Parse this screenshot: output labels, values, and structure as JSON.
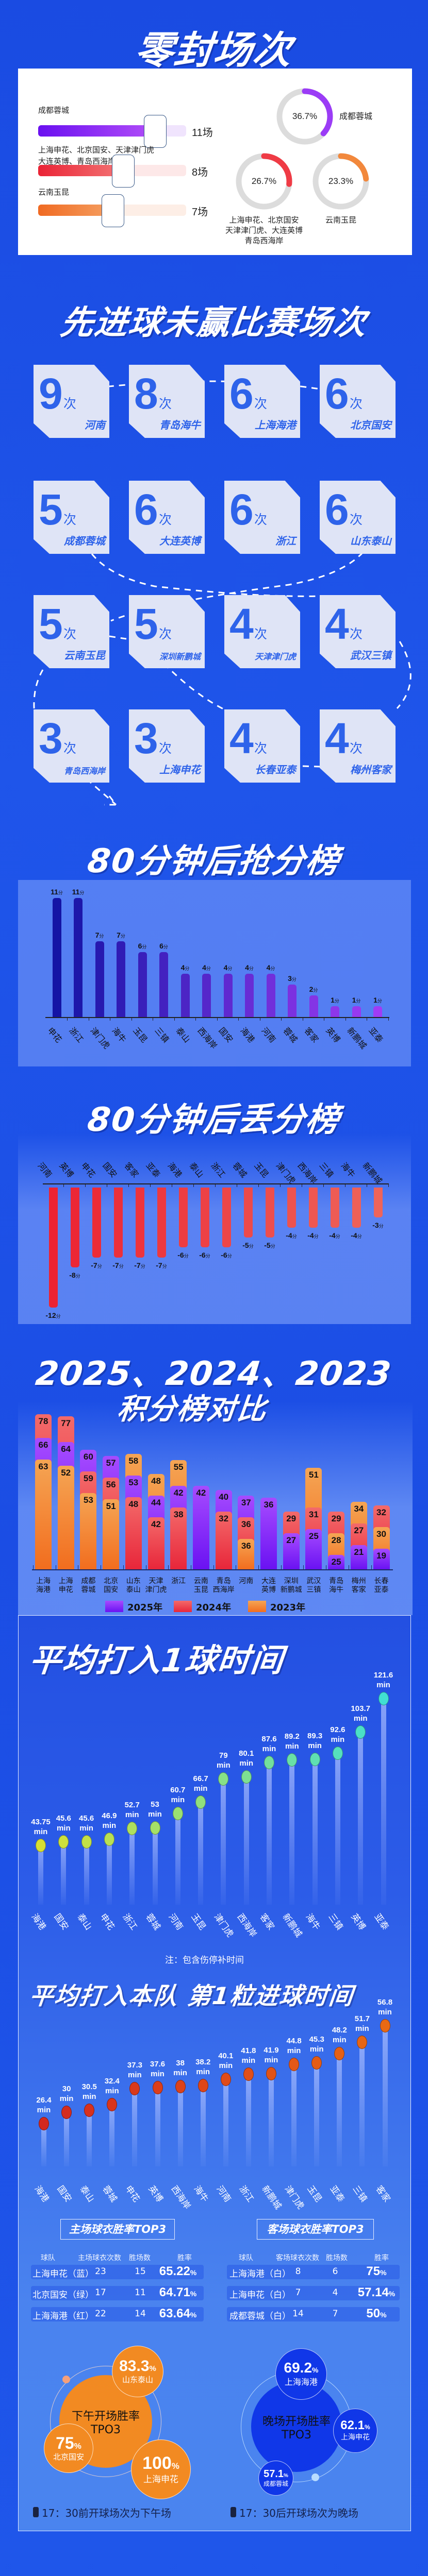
{
  "colors": {
    "background": "#1d50e6",
    "purple": "#8b2cf6",
    "red": "#ee3a44",
    "orange": "#f2863a",
    "box": "#dfe4f6",
    "box_text": "#2e63ea"
  },
  "clean_sheets": {
    "title": "零封场次",
    "bars": [
      {
        "teams": [
          "成都蓉城"
        ],
        "value": 11,
        "label": "11场"
      },
      {
        "teams": [
          "上海申花、北京国安、天津津门虎",
          "大连英博、青岛西海岸"
        ],
        "value": 8,
        "label": "8场"
      },
      {
        "teams": [
          "云南玉昆"
        ],
        "value": 7,
        "label": "7场"
      }
    ],
    "donuts": [
      {
        "percent": 36.7,
        "label": "36.7%",
        "teams": [
          "成都蓉城"
        ]
      },
      {
        "percent": 26.7,
        "label": "26.7%",
        "teams": [
          "上海申花、北京国安",
          "天津津门虎、大连英博",
          "青岛西海岸"
        ]
      },
      {
        "percent": 23.3,
        "label": "23.3%",
        "teams": [
          "云南玉昆"
        ]
      }
    ]
  },
  "lead_not_won": {
    "title": "先进球未赢比赛场次",
    "unit": "次",
    "items": [
      {
        "count": "9",
        "team": "河南"
      },
      {
        "count": "8",
        "team": "青岛海牛"
      },
      {
        "count": "6",
        "team": "上海海港"
      },
      {
        "count": "6",
        "team": "北京国安"
      },
      {
        "count": "5",
        "team": "成都蓉城"
      },
      {
        "count": "6",
        "team": "大连英博"
      },
      {
        "count": "6",
        "team": "浙江"
      },
      {
        "count": "6",
        "team": "山东泰山"
      },
      {
        "count": "5",
        "team": "云南玉昆"
      },
      {
        "count": "5",
        "team": "深圳新鹏城"
      },
      {
        "count": "4",
        "team": "天津津门虎"
      },
      {
        "count": "4",
        "team": "武汉三镇"
      },
      {
        "count": "3",
        "team": "青岛西海岸"
      },
      {
        "count": "3",
        "team": "上海申花"
      },
      {
        "count": "4",
        "team": "长春亚泰"
      },
      {
        "count": "4",
        "team": "梅州客家"
      }
    ]
  },
  "chart_data": [
    {
      "id": "points_gained_after_80",
      "type": "bar",
      "title": "80分钟后抢分榜",
      "unit": "分",
      "categories": [
        "申花",
        "浙江",
        "津门虎",
        "海牛",
        "玉昆",
        "三镇",
        "泰山",
        "西海岸",
        "国安",
        "海港",
        "河南",
        "蓉城",
        "客家",
        "英博",
        "新鹏城",
        "亚泰"
      ],
      "values": [
        11,
        11,
        7,
        7,
        6,
        6,
        4,
        4,
        4,
        4,
        4,
        3,
        2,
        1,
        1,
        1
      ],
      "ylim": [
        0,
        12
      ]
    },
    {
      "id": "points_lost_after_80",
      "type": "bar",
      "title": "80分钟后丢分榜",
      "unit": "分",
      "categories": [
        "河南",
        "英博",
        "申花",
        "国安",
        "客家",
        "亚泰",
        "海港",
        "泰山",
        "浙江",
        "蓉城",
        "玉昆",
        "津门虎",
        "西海岸",
        "三镇",
        "海牛",
        "新鹏城"
      ],
      "values": [
        -12,
        -8,
        -7,
        -7,
        -7,
        -7,
        -6,
        -6,
        -6,
        -5,
        -5,
        -4,
        -4,
        -4,
        -4,
        -3
      ],
      "ylim": [
        -12,
        0
      ]
    },
    {
      "id": "standings_compare",
      "type": "bar",
      "title_line1": "2025、2024、2023",
      "title_line2": "积分榜对比",
      "categories": [
        [
          "上海",
          "海港"
        ],
        [
          "上海",
          "申花"
        ],
        [
          "成都",
          "蓉城"
        ],
        [
          "北京",
          "国安"
        ],
        [
          "山东",
          "泰山"
        ],
        [
          "天津",
          "津门虎"
        ],
        [
          "浙江",
          ""
        ],
        [
          "云南",
          "玉昆"
        ],
        [
          "青岛",
          "西海岸"
        ],
        [
          "河南",
          ""
        ],
        [
          "大连",
          "英博"
        ],
        [
          "深圳",
          "新鹏城"
        ],
        [
          "武汉",
          "三镇"
        ],
        [
          "青岛",
          "海牛"
        ],
        [
          "梅州",
          "客家"
        ],
        [
          "长春",
          "亚泰"
        ]
      ],
      "series": [
        {
          "name": "2025年",
          "color": "#8a2cf6",
          "values": [
            66,
            64,
            60,
            57,
            53,
            44,
            42,
            42,
            40,
            37,
            36,
            27,
            25,
            25,
            21,
            19
          ]
        },
        {
          "name": "2024年",
          "color": "#ef4450",
          "values": [
            78,
            77,
            59,
            56,
            48,
            42,
            38,
            null,
            32,
            36,
            null,
            29,
            31,
            29,
            27,
            32
          ]
        },
        {
          "name": "2023年",
          "color": "#f38a3c",
          "values": [
            63,
            52,
            53,
            51,
            58,
            48,
            55,
            null,
            null,
            36,
            null,
            null,
            51,
            28,
            34,
            30
          ]
        }
      ],
      "legend": "bottom"
    },
    {
      "id": "avg_time_per_goal",
      "type": "scatter",
      "title": "平均打入1球时间",
      "unit": "min",
      "categories": [
        "海港",
        "国安",
        "泰山",
        "申花",
        "浙江",
        "蓉城",
        "河南",
        "玉昆",
        "津门虎",
        "西海岸",
        "客家",
        "新鹏城",
        "海牛",
        "三镇",
        "英博",
        "亚泰"
      ],
      "values": [
        43.75,
        45.6,
        45.6,
        46.9,
        52.7,
        53,
        60.7,
        66.7,
        79,
        80.1,
        87.6,
        89.2,
        89.3,
        92.6,
        103.7,
        121.6
      ],
      "labels": [
        "43.75",
        "45.6",
        "45.6",
        "46.9",
        "52.7",
        "53",
        "60.7",
        "66.7",
        "79",
        "80.1",
        "87.6",
        "89.2",
        "89.3",
        "92.6",
        "103.7",
        "121.6"
      ],
      "note": "注：包含伤停补时间"
    },
    {
      "id": "avg_time_first_goal",
      "type": "scatter",
      "title": "平均打入本队 第1粒进球时间",
      "unit": "min",
      "categories": [
        "海港",
        "国安",
        "泰山",
        "蓉城",
        "申花",
        "英博",
        "西海岸",
        "海牛",
        "河南",
        "浙江",
        "新鹏城",
        "津门虎",
        "玉昆",
        "亚泰",
        "三镇",
        "客家"
      ],
      "values": [
        26.4,
        30,
        30.5,
        32.4,
        37.3,
        37.6,
        38,
        38.2,
        40.1,
        41.8,
        41.9,
        44.8,
        45.3,
        48.2,
        51.7,
        56.8
      ],
      "labels": [
        "26.4",
        "30",
        "30.5",
        "32.4",
        "37.3",
        "37.6",
        "38",
        "38.2",
        "40.1",
        "41.8",
        "41.9",
        "44.8",
        "45.3",
        "48.2",
        "51.7",
        "56.8"
      ]
    }
  ],
  "home_kit": {
    "title": "主场球衣胜率TOP3",
    "headers": [
      "球队",
      "主场球衣次数",
      "胜场数",
      "胜率"
    ],
    "rows": [
      {
        "team": "上海申花（蓝）",
        "games": "23",
        "wins": "15",
        "rate": "65.22",
        "pct": "%"
      },
      {
        "team": "北京国安（绿）",
        "games": "17",
        "wins": "11",
        "rate": "64.71",
        "pct": "%"
      },
      {
        "team": "上海海港（红）",
        "games": "22",
        "wins": "14",
        "rate": "63.64",
        "pct": "%"
      }
    ]
  },
  "away_kit": {
    "title": "客场球衣胜率TOP3",
    "headers": [
      "球队",
      "客场球衣次数",
      "胜场数",
      "胜率"
    ],
    "rows": [
      {
        "team": "上海海港（白）",
        "games": "8",
        "wins": "6",
        "rate": "75",
        "pct": "%"
      },
      {
        "team": "上海申花（白）",
        "games": "7",
        "wins": "4",
        "rate": "57.14",
        "pct": "%"
      },
      {
        "team": "成都蓉城（白）",
        "games": "14",
        "wins": "7",
        "rate": "50",
        "pct": "%"
      }
    ]
  },
  "afternoon": {
    "title_line1": "下午开场胜率",
    "title_line2": "TPO3",
    "items": [
      {
        "rate": "83.3",
        "team": "山东泰山"
      },
      {
        "rate": "75",
        "team": "北京国安"
      },
      {
        "rate": "100",
        "team": "上海申花"
      }
    ],
    "pct": "%",
    "note": "17：30前开球场次为下午场",
    "icon": "watch-icon"
  },
  "evening": {
    "title_line1": "晚场开场胜率",
    "title_line2": "TPO3",
    "items": [
      {
        "rate": "69.2",
        "team": "上海海港"
      },
      {
        "rate": "62.1",
        "team": "上海申花"
      },
      {
        "rate": "57.1",
        "team": "成都蓉城"
      }
    ],
    "pct": "%",
    "note": "17：30后开球场次为晚场",
    "icon": "watch-icon"
  }
}
